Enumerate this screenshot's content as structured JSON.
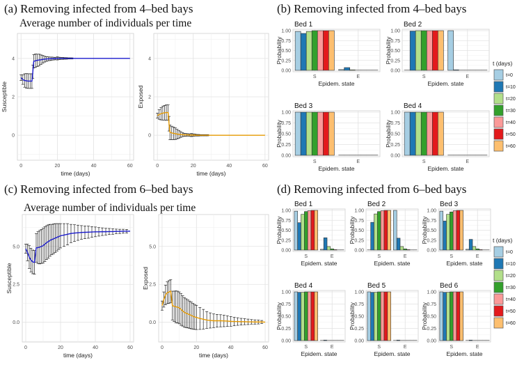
{
  "panels": {
    "a": {
      "title": "(a) Removing infected from 4–bed bays",
      "subtitle": "Average number of individuals per time"
    },
    "b": {
      "title": "(b) Removing infected from 4–bed bays"
    },
    "c": {
      "title": "(c) Removing infected from 6–bed bays",
      "subtitle": "Average number of individuals per time"
    },
    "d": {
      "title": "(d) Removing infected from 6–bed bays"
    }
  },
  "colors": {
    "susceptible_line": "#1a1acc",
    "exposed_line": "#e69a00",
    "t=0": "#a6cee3",
    "t=10": "#1f78b4",
    "t=20": "#b2df8a",
    "t=30": "#33a02c",
    "t=40": "#fb9a99",
    "t=50": "#e31a1c",
    "t=60": "#fdbf6f"
  },
  "legend": {
    "title": "t (days)",
    "items": [
      "t=0",
      "t=10",
      "t=20",
      "t=30",
      "t=40",
      "t=50",
      "t=60"
    ]
  },
  "chart_data": [
    {
      "id": "a-susceptible",
      "type": "line",
      "xlabel": "time (days)",
      "ylabel": "Susceptible",
      "xlim": [
        -2,
        62
      ],
      "ylim": [
        -1.3,
        5.3
      ],
      "xticks": [
        0,
        20,
        40,
        60
      ],
      "yticks": [
        0,
        2,
        4
      ],
      "ytick_labels": [
        "0",
        "2",
        "4"
      ],
      "x": [
        0,
        1,
        2,
        3,
        4,
        5,
        6,
        6.5,
        7,
        8,
        9,
        10,
        11,
        12,
        13,
        14,
        15,
        16,
        17,
        18,
        19,
        20,
        21,
        22,
        23,
        24,
        25,
        26,
        27,
        28,
        60
      ],
      "y": [
        3.0,
        2.9,
        2.85,
        2.83,
        2.82,
        2.82,
        2.82,
        3.3,
        3.85,
        3.88,
        3.9,
        3.92,
        3.93,
        3.95,
        3.96,
        3.97,
        3.98,
        3.98,
        3.99,
        3.99,
        3.99,
        4.0,
        4.0,
        4.0,
        4.0,
        4.0,
        4.0,
        4.0,
        4.0,
        4.0,
        4.0
      ],
      "err": [
        0.15,
        0.25,
        0.35,
        0.38,
        0.38,
        0.38,
        0.38,
        0.35,
        0.35,
        0.35,
        0.32,
        0.3,
        0.25,
        0.2,
        0.15,
        0.12,
        0.1,
        0.09,
        0.08,
        0.07,
        0.06,
        0.08,
        0.06,
        0.05,
        0.05,
        0.04,
        0.04,
        0.03,
        0.03,
        0.03,
        0
      ]
    },
    {
      "id": "a-exposed",
      "type": "line",
      "xlabel": "time (days)",
      "ylabel": "Exposed",
      "xlim": [
        -2,
        62
      ],
      "ylim": [
        -1.3,
        5.3
      ],
      "xticks": [
        0,
        20,
        40,
        60
      ],
      "yticks": [
        0,
        2,
        4
      ],
      "ytick_labels": [
        "0",
        "2",
        "4"
      ],
      "x": [
        0,
        1,
        2,
        3,
        4,
        5,
        6,
        6.5,
        7,
        8,
        9,
        10,
        11,
        12,
        13,
        14,
        15,
        16,
        17,
        18,
        19,
        20,
        21,
        22,
        23,
        24,
        25,
        26,
        27,
        28,
        60
      ],
      "y": [
        1.02,
        1.08,
        1.12,
        1.15,
        1.17,
        1.18,
        1.18,
        0.6,
        0.15,
        0.12,
        0.1,
        0.08,
        0.06,
        0.05,
        0.04,
        0.03,
        0.02,
        0.02,
        0.02,
        0.01,
        0.01,
        0.01,
        0.01,
        0.0,
        0.0,
        0.0,
        0.0,
        0.0,
        0.0,
        0.0,
        0.0
      ],
      "err": [
        0.13,
        0.25,
        0.32,
        0.36,
        0.38,
        0.4,
        0.4,
        0.38,
        0.38,
        0.35,
        0.33,
        0.3,
        0.25,
        0.2,
        0.15,
        0.1,
        0.08,
        0.07,
        0.06,
        0.06,
        0.08,
        0.06,
        0.05,
        0.04,
        0.04,
        0.03,
        0.03,
        0.03,
        0.03,
        0.03,
        0
      ]
    },
    {
      "id": "c-susceptible",
      "type": "line",
      "xlabel": "time (days)",
      "ylabel": "Susceptible",
      "xlim": [
        -2,
        62
      ],
      "ylim": [
        -1.3,
        7.1
      ],
      "xticks": [
        0,
        20,
        40,
        60
      ],
      "yticks": [
        0,
        2.5,
        5
      ],
      "ytick_labels": [
        "0.0",
        "2.5",
        "5.0"
      ],
      "x": [
        0,
        1,
        2,
        3,
        4,
        5,
        6,
        7,
        8,
        9,
        10,
        11,
        12,
        13,
        14,
        15,
        16,
        17,
        18,
        19,
        20,
        22,
        24,
        26,
        28,
        30,
        32,
        34,
        36,
        38,
        40,
        42,
        44,
        46,
        48,
        50,
        52,
        54,
        56,
        58,
        60
      ],
      "y": [
        4.85,
        4.6,
        4.3,
        4.1,
        3.98,
        3.95,
        4.9,
        4.92,
        4.95,
        5.0,
        5.05,
        5.15,
        5.25,
        5.32,
        5.4,
        5.45,
        5.5,
        5.55,
        5.6,
        5.65,
        5.7,
        5.75,
        5.8,
        5.85,
        5.88,
        5.9,
        5.92,
        5.93,
        5.94,
        5.95,
        5.96,
        5.96,
        5.97,
        5.97,
        5.98,
        5.98,
        5.99,
        5.99,
        6.0,
        6.0,
        6.0
      ],
      "err": [
        0.3,
        0.55,
        0.75,
        0.78,
        0.78,
        0.78,
        0.95,
        1.05,
        1.1,
        1.12,
        1.15,
        1.15,
        1.12,
        1.1,
        1.05,
        1.0,
        0.98,
        0.95,
        0.9,
        0.85,
        0.8,
        0.75,
        0.7,
        0.6,
        0.55,
        0.5,
        0.45,
        0.42,
        0.4,
        0.35,
        0.32,
        0.28,
        0.25,
        0.22,
        0.2,
        0.18,
        0.15,
        0.14,
        0.13,
        0.12,
        0
      ]
    },
    {
      "id": "c-exposed",
      "type": "line",
      "xlabel": "time (days)",
      "ylabel": "Exposed",
      "xlim": [
        -2,
        62
      ],
      "ylim": [
        -1.3,
        7.1
      ],
      "xticks": [
        0,
        20,
        40,
        60
      ],
      "yticks": [
        0,
        2.5,
        5
      ],
      "ytick_labels": [
        "0.0",
        "2.5",
        "5.0"
      ],
      "x": [
        0,
        1,
        2,
        3,
        4,
        5,
        6,
        7,
        8,
        9,
        10,
        11,
        12,
        13,
        14,
        15,
        16,
        17,
        18,
        19,
        20,
        22,
        24,
        26,
        28,
        30,
        32,
        34,
        36,
        38,
        40,
        42,
        44,
        46,
        48,
        50,
        52,
        54,
        56,
        58,
        60
      ],
      "y": [
        1.1,
        1.5,
        1.8,
        1.95,
        2.0,
        2.05,
        1.1,
        1.05,
        1.02,
        1.0,
        0.95,
        0.85,
        0.75,
        0.65,
        0.6,
        0.55,
        0.5,
        0.45,
        0.4,
        0.35,
        0.32,
        0.25,
        0.2,
        0.15,
        0.12,
        0.1,
        0.1,
        0.1,
        0.09,
        0.08,
        0.06,
        0.05,
        0.05,
        0.04,
        0.04,
        0.03,
        0.03,
        0.02,
        0.02,
        0.02,
        0.01
      ],
      "err": [
        0.3,
        0.5,
        0.65,
        0.72,
        0.75,
        0.75,
        0.95,
        1.0,
        1.05,
        1.05,
        1.05,
        1.05,
        1.0,
        0.98,
        0.95,
        0.92,
        0.9,
        0.88,
        0.85,
        0.82,
        0.8,
        0.72,
        0.65,
        0.55,
        0.5,
        0.45,
        0.42,
        0.4,
        0.38,
        0.35,
        0.32,
        0.28,
        0.25,
        0.22,
        0.2,
        0.18,
        0.15,
        0.14,
        0.13,
        0.1,
        0
      ]
    },
    {
      "id": "b-bed-1",
      "type": "bar",
      "title": "Bed 1",
      "xlabel": "Epidem. state",
      "ylabel": "Probability",
      "categories": [
        "S",
        "E"
      ],
      "ylim": [
        0,
        1
      ],
      "yticks": [
        "0.00",
        "0.25",
        "0.50",
        "0.75",
        "1.00"
      ],
      "series": {
        "S": [
          0.98,
          0.93,
          0.98,
          1.0,
          1.0,
          1.0,
          1.0
        ],
        "E": [
          0.02,
          0.07,
          0.01,
          0.0,
          0.0,
          0.0,
          0.0
        ]
      }
    },
    {
      "id": "b-bed-2",
      "type": "bar",
      "title": "Bed 2",
      "xlabel": "Epidem. state",
      "ylabel": "Probability",
      "categories": [
        "S",
        "E"
      ],
      "ylim": [
        0,
        1
      ],
      "yticks": [
        "0.00",
        "0.25",
        "0.50",
        "0.75",
        "1.00"
      ],
      "series": {
        "S": [
          0.0,
          0.99,
          1.0,
          1.0,
          1.0,
          1.0,
          1.0
        ],
        "E": [
          1.0,
          0.01,
          0.0,
          0.0,
          0.0,
          0.0,
          0.0
        ]
      }
    },
    {
      "id": "b-bed-3",
      "type": "bar",
      "title": "Bed 3",
      "xlabel": "Epidem. state",
      "ylabel": "Probability",
      "categories": [
        "S",
        "E"
      ],
      "ylim": [
        0,
        1
      ],
      "yticks": [
        "0.00",
        "0.25",
        "0.50",
        "0.75",
        "1.00"
      ],
      "series": {
        "S": [
          1.0,
          1.0,
          1.0,
          1.0,
          1.0,
          1.0,
          1.0
        ],
        "E": [
          0.0,
          0.0,
          0.0,
          0.0,
          0.0,
          0.0,
          0.0
        ]
      }
    },
    {
      "id": "b-bed-4",
      "type": "bar",
      "title": "Bed 4",
      "xlabel": "Epidem. state",
      "ylabel": "Probability",
      "categories": [
        "S",
        "E"
      ],
      "ylim": [
        0,
        1
      ],
      "yticks": [
        "0.00",
        "0.25",
        "0.50",
        "0.75",
        "1.00"
      ],
      "series": {
        "S": [
          1.0,
          1.0,
          1.0,
          1.0,
          1.0,
          1.0,
          1.0
        ],
        "E": [
          0.0,
          0.0,
          0.0,
          0.0,
          0.0,
          0.0,
          0.0
        ]
      }
    },
    {
      "id": "d-bed-1",
      "type": "bar",
      "title": "Bed 1",
      "xlabel": "Epidem. state",
      "ylabel": "Probability",
      "categories": [
        "S",
        "E"
      ],
      "ylim": [
        0,
        1
      ],
      "yticks": [
        "0.00",
        "0.25",
        "0.50",
        "0.75",
        "1.00"
      ],
      "series": {
        "S": [
          0.98,
          0.69,
          0.9,
          0.97,
          0.99,
          1.0,
          1.0
        ],
        "E": [
          0.02,
          0.31,
          0.09,
          0.03,
          0.01,
          0.0,
          0.0
        ]
      }
    },
    {
      "id": "d-bed-2",
      "type": "bar",
      "title": "Bed 2",
      "xlabel": "Epidem. state",
      "ylabel": "Probability",
      "categories": [
        "S",
        "E"
      ],
      "ylim": [
        0,
        1
      ],
      "yticks": [
        "0.00",
        "0.25",
        "0.50",
        "0.75",
        "1.00"
      ],
      "series": {
        "S": [
          0.0,
          0.7,
          0.91,
          0.97,
          0.99,
          1.0,
          1.0
        ],
        "E": [
          1.0,
          0.3,
          0.09,
          0.03,
          0.01,
          0.0,
          0.0
        ]
      }
    },
    {
      "id": "d-bed-3",
      "type": "bar",
      "title": "Bed 3",
      "xlabel": "Epidem. state",
      "ylabel": "Probability",
      "categories": [
        "S",
        "E"
      ],
      "ylim": [
        0,
        1
      ],
      "yticks": [
        "0.00",
        "0.25",
        "0.50",
        "0.75",
        "1.00"
      ],
      "series": {
        "S": [
          0.98,
          0.73,
          0.9,
          0.96,
          0.99,
          1.0,
          1.0
        ],
        "E": [
          0.02,
          0.27,
          0.09,
          0.03,
          0.01,
          0.0,
          0.0
        ]
      }
    },
    {
      "id": "d-bed-4",
      "type": "bar",
      "title": "Bed 4",
      "xlabel": "Epidem. state",
      "ylabel": "Probability",
      "categories": [
        "S",
        "E"
      ],
      "ylim": [
        0,
        1
      ],
      "yticks": [
        "0.00",
        "0.25",
        "0.50",
        "0.75",
        "1.00"
      ],
      "series": {
        "S": [
          1.0,
          0.99,
          0.99,
          1.0,
          1.0,
          1.0,
          1.0
        ],
        "E": [
          0.0,
          0.01,
          0.0,
          0.0,
          0.0,
          0.0,
          0.0
        ]
      }
    },
    {
      "id": "d-bed-5",
      "type": "bar",
      "title": "Bed 5",
      "xlabel": "Epidem. state",
      "ylabel": "Probability",
      "categories": [
        "S",
        "E"
      ],
      "ylim": [
        0,
        1
      ],
      "yticks": [
        "0.00",
        "0.25",
        "0.50",
        "0.75",
        "1.00"
      ],
      "series": {
        "S": [
          1.0,
          0.99,
          0.99,
          1.0,
          1.0,
          1.0,
          1.0
        ],
        "E": [
          0.0,
          0.01,
          0.0,
          0.0,
          0.0,
          0.0,
          0.0
        ]
      }
    },
    {
      "id": "d-bed-6",
      "type": "bar",
      "title": "Bed 6",
      "xlabel": "Epidem. state",
      "ylabel": "Probability",
      "categories": [
        "S",
        "E"
      ],
      "ylim": [
        0,
        1
      ],
      "yticks": [
        "0.00",
        "0.25",
        "0.50",
        "0.75",
        "1.00"
      ],
      "series": {
        "S": [
          1.0,
          0.99,
          0.99,
          1.0,
          1.0,
          1.0,
          1.0
        ],
        "E": [
          0.0,
          0.01,
          0.0,
          0.0,
          0.0,
          0.0,
          0.0
        ]
      }
    }
  ]
}
